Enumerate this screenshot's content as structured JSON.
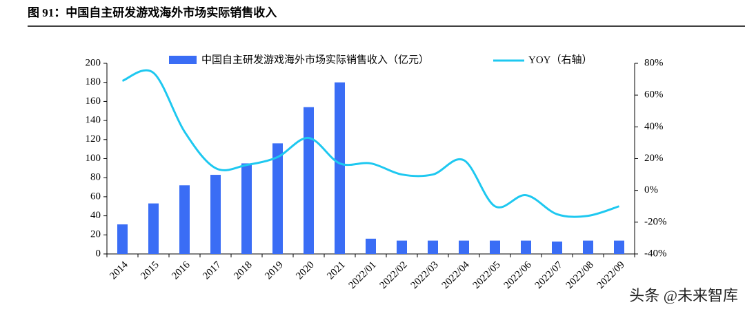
{
  "chart_data": {
    "type": "bar-line",
    "title": "图 91：中国自主研发游戏海外市场实际销售收入",
    "categories": [
      "2014",
      "2015",
      "2016",
      "2017",
      "2018",
      "2019",
      "2020",
      "2021",
      "2022/01",
      "2022/02",
      "2022/03",
      "2022/04",
      "2022/05",
      "2022/06",
      "2022/07",
      "2022/08",
      "2022/09"
    ],
    "series": [
      {
        "name": "中国自主研发游戏海外市场实际销售收入（亿元）",
        "type": "bar",
        "color": "#3a6df5",
        "values": [
          31,
          53,
          72,
          83,
          95,
          116,
          154,
          180,
          16,
          14,
          14,
          14,
          14,
          14,
          13,
          14,
          14
        ]
      },
      {
        "name": "YOY（右轴）",
        "type": "line",
        "axis": "y2",
        "color": "#1ec8f0",
        "values": [
          69,
          74,
          37,
          14,
          16,
          21,
          33,
          17,
          17,
          10,
          10,
          19,
          -10,
          -3,
          -15,
          -16,
          -10
        ]
      }
    ],
    "ylim": [
      0,
      200
    ],
    "yticks": [
      0,
      20,
      40,
      60,
      80,
      100,
      120,
      140,
      160,
      180,
      200
    ],
    "y2lim": [
      -40,
      80
    ],
    "y2ticks": [
      {
        "value": -40,
        "label": "-40%"
      },
      {
        "value": -20,
        "label": "-20%"
      },
      {
        "value": 0,
        "label": "0%"
      },
      {
        "value": 20,
        "label": "20%"
      },
      {
        "value": 40,
        "label": "40%"
      },
      {
        "value": 60,
        "label": "60%"
      },
      {
        "value": 80,
        "label": "80%"
      }
    ],
    "watermark": "头条 @未来智库"
  }
}
